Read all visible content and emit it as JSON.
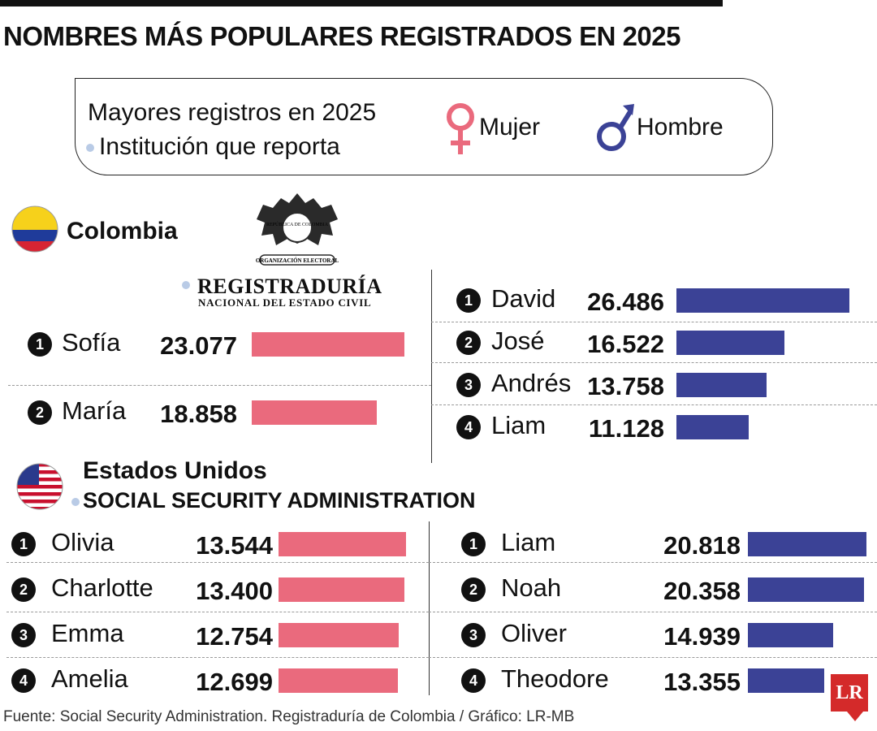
{
  "title": "NOMBRES MÁS POPULARES REGISTRADOS EN 2025",
  "legend": {
    "line1": "Mayores registros en 2025",
    "line2": "Institución que reporta",
    "female_label": "Mujer",
    "male_label": "Hombre"
  },
  "colors": {
    "female": "#ea6a7d",
    "male": "#3b4296"
  },
  "colombia": {
    "country": "Colombia",
    "institution_logo_line1": "REGISTRADURÍA",
    "institution_logo_line2": "NACIONAL DEL ESTADO CIVIL",
    "seal_text_1": "REPÚBLICA DE COLOMBIA",
    "seal_text_2": "ORGANIZACIÓN ELECTORAL"
  },
  "usa": {
    "country": "Estados Unidos",
    "institution": "SOCIAL SECURITY ADMINISTRATION"
  },
  "footer": "Fuente: Social Security Administration. Registraduría de Colombia / Gráfico: LR-MB",
  "logo": "LR",
  "chart_data": [
    {
      "type": "bar",
      "group": "Colombia - Mujer",
      "categories": [
        "Sofía",
        "María"
      ],
      "ranks": [
        "1",
        "2"
      ],
      "values": [
        23077,
        18858
      ],
      "labels": [
        "23.077",
        "18.858"
      ]
    },
    {
      "type": "bar",
      "group": "Colombia - Hombre",
      "categories": [
        "David",
        "José",
        "Andrés",
        "Liam"
      ],
      "ranks": [
        "1",
        "2",
        "3",
        "4"
      ],
      "values": [
        26486,
        16522,
        13758,
        11128
      ],
      "labels": [
        "26.486",
        "16.522",
        "13.758",
        "11.128"
      ]
    },
    {
      "type": "bar",
      "group": "Estados Unidos - Mujer",
      "categories": [
        "Olivia",
        "Charlotte",
        "Emma",
        "Amelia"
      ],
      "ranks": [
        "1",
        "2",
        "3",
        "4"
      ],
      "values": [
        13544,
        13400,
        12754,
        12699
      ],
      "labels": [
        "13.544",
        "13.400",
        "12.754",
        "12.699"
      ]
    },
    {
      "type": "bar",
      "group": "Estados Unidos - Hombre",
      "categories": [
        "Liam",
        "Noah",
        "Oliver",
        "Theodore"
      ],
      "ranks": [
        "1",
        "2",
        "3",
        "4"
      ],
      "values": [
        20818,
        20358,
        14939,
        13355
      ],
      "labels": [
        "20.818",
        "20.358",
        "14.939",
        "13.355"
      ]
    }
  ]
}
